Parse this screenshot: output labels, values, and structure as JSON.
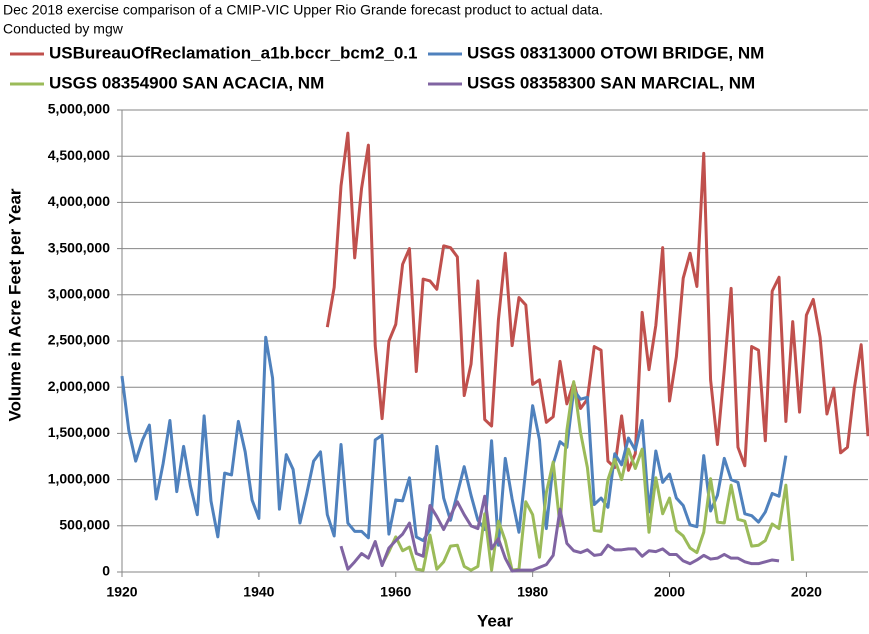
{
  "chart_data": {
    "type": "line",
    "title": "Dec 2018 exercise comparison of a CMIP-VIC Upper Rio Grande forecast product to actual data.",
    "subtitle": "Conducted by mgw",
    "xlabel": "Year",
    "ylabel": "Volume in Acre Feet per Year",
    "xlim": [
      1920,
      2029
    ],
    "xticks": [
      1920,
      1940,
      1960,
      1980,
      2000,
      2020
    ],
    "ylim": [
      0,
      5000000
    ],
    "yticks": [
      0,
      {
        "value": 500000,
        "label": "500,000"
      },
      {
        "value": 1000000,
        "label": "1,000,000"
      },
      {
        "value": 1500000,
        "label": "1,500,000"
      },
      {
        "value": 2000000,
        "label": "2,000,000"
      },
      {
        "value": 2500000,
        "label": "2,500,000"
      },
      {
        "value": 3000000,
        "label": "3,000,000"
      },
      {
        "value": 3500000,
        "label": "3,500,000"
      },
      {
        "value": 4000000,
        "label": "4,000,000"
      },
      {
        "value": 4500000,
        "label": "4,500,000"
      },
      {
        "value": 5000000,
        "label": "5,000,000"
      }
    ],
    "grid": true,
    "series": [
      {
        "name": "USBureauOfReclamation_a1b.bccr_bcm2_0.1",
        "color": "#c0504d",
        "x": [
          1950,
          1951,
          1952,
          1953,
          1954,
          1955,
          1956,
          1957,
          1958,
          1959,
          1960,
          1961,
          1962,
          1963,
          1964,
          1965,
          1966,
          1967,
          1968,
          1969,
          1970,
          1971,
          1972,
          1973,
          1974,
          1975,
          1976,
          1977,
          1978,
          1979,
          1980,
          1981,
          1982,
          1983,
          1984,
          1985,
          1986,
          1987,
          1988,
          1989,
          1990,
          1991,
          1992,
          1993,
          1994,
          1995,
          1996,
          1997,
          1998,
          1999,
          2000,
          2001,
          2002,
          2003,
          2004,
          2005,
          2006,
          2007,
          2008,
          2009,
          2010,
          2011,
          2012,
          2013,
          2014,
          2015,
          2016,
          2017,
          2018,
          2019,
          2020,
          2021,
          2022,
          2023,
          2024,
          2025,
          2026,
          2027,
          2028,
          2029
        ],
        "values": [
          2650000,
          3080000,
          4180000,
          4750000,
          3400000,
          4150000,
          4620000,
          2450000,
          1660000,
          2500000,
          2680000,
          3330000,
          3500000,
          2170000,
          3170000,
          3150000,
          3060000,
          3530000,
          3510000,
          3410000,
          1910000,
          2250000,
          3150000,
          1650000,
          1580000,
          2730000,
          3450000,
          2450000,
          2970000,
          2890000,
          2030000,
          2080000,
          1620000,
          1680000,
          2280000,
          1820000,
          2050000,
          1770000,
          1870000,
          2440000,
          2400000,
          1200000,
          1130000,
          1690000,
          1100000,
          1280000,
          2810000,
          2190000,
          2670000,
          3510000,
          1850000,
          2330000,
          3180000,
          3450000,
          3090000,
          4530000,
          2080000,
          1380000,
          2190000,
          3070000,
          1350000,
          1150000,
          2440000,
          2400000,
          1420000,
          3040000,
          3190000,
          1630000,
          2710000,
          1730000,
          2780000,
          2950000,
          2540000,
          1710000,
          1990000,
          1290000,
          1350000,
          1990000,
          2460000,
          1470000
        ]
      },
      {
        "name": "USGS 08313000 OTOWI BRIDGE, NM",
        "color": "#4f81bd",
        "x": [
          1920,
          1921,
          1922,
          1923,
          1924,
          1925,
          1926,
          1927,
          1928,
          1929,
          1930,
          1931,
          1932,
          1933,
          1934,
          1935,
          1936,
          1937,
          1938,
          1939,
          1940,
          1941,
          1942,
          1943,
          1944,
          1945,
          1946,
          1947,
          1948,
          1949,
          1950,
          1951,
          1952,
          1953,
          1954,
          1955,
          1956,
          1957,
          1958,
          1959,
          1960,
          1961,
          1962,
          1963,
          1964,
          1965,
          1966,
          1967,
          1968,
          1969,
          1970,
          1971,
          1972,
          1973,
          1974,
          1975,
          1976,
          1977,
          1978,
          1979,
          1980,
          1981,
          1982,
          1983,
          1984,
          1985,
          1986,
          1987,
          1988,
          1989,
          1990,
          1991,
          1992,
          1993,
          1994,
          1995,
          1996,
          1997,
          1998,
          1999,
          2000,
          2001,
          2002,
          2003,
          2004,
          2005,
          2006,
          2007,
          2008,
          2009,
          2010,
          2011,
          2012,
          2013,
          2014,
          2015,
          2016,
          2017
        ],
        "values": [
          2120000,
          1530000,
          1200000,
          1430000,
          1590000,
          790000,
          1170000,
          1640000,
          870000,
          1360000,
          930000,
          620000,
          1690000,
          770000,
          380000,
          1070000,
          1050000,
          1630000,
          1300000,
          780000,
          580000,
          2540000,
          2100000,
          680000,
          1270000,
          1110000,
          530000,
          850000,
          1200000,
          1300000,
          620000,
          390000,
          1380000,
          530000,
          440000,
          440000,
          370000,
          1430000,
          1480000,
          410000,
          780000,
          770000,
          1020000,
          380000,
          340000,
          460000,
          1360000,
          800000,
          560000,
          850000,
          1140000,
          830000,
          560000,
          460000,
          1420000,
          290000,
          1230000,
          790000,
          430000,
          1110000,
          1800000,
          1430000,
          470000,
          1170000,
          1410000,
          1350000,
          1970000,
          1870000,
          1890000,
          730000,
          800000,
          700000,
          1280000,
          1160000,
          1450000,
          1320000,
          1640000,
          650000,
          1310000,
          970000,
          1060000,
          800000,
          720000,
          510000,
          490000,
          1260000,
          660000,
          830000,
          1230000,
          1000000,
          970000,
          630000,
          610000,
          540000,
          650000,
          850000,
          820000,
          1260000
        ]
      },
      {
        "name": "USGS 08354900 SAN ACACIA, NM",
        "color": "#9bbb59",
        "x": [
          1958,
          1959,
          1960,
          1961,
          1962,
          1963,
          1964,
          1965,
          1966,
          1967,
          1968,
          1969,
          1970,
          1971,
          1972,
          1973,
          1974,
          1975,
          1976,
          1977,
          1978,
          1979,
          1980,
          1981,
          1982,
          1983,
          1984,
          1985,
          1986,
          1987,
          1988,
          1989,
          1990,
          1991,
          1992,
          1993,
          1994,
          1995,
          1996,
          1997,
          1998,
          1999,
          2000,
          2001,
          2002,
          2003,
          2004,
          2005,
          2006,
          2007,
          2008,
          2009,
          2010,
          2011,
          2012,
          2013,
          2014,
          2015,
          2016,
          2017,
          2018
        ],
        "values": [
          80000,
          220000,
          380000,
          230000,
          270000,
          30000,
          20000,
          400000,
          30000,
          110000,
          280000,
          290000,
          60000,
          20000,
          60000,
          630000,
          20000,
          550000,
          340000,
          20000,
          30000,
          760000,
          620000,
          160000,
          860000,
          1190000,
          500000,
          1530000,
          2060000,
          1510000,
          1130000,
          450000,
          440000,
          1000000,
          1220000,
          1000000,
          1330000,
          1120000,
          1330000,
          430000,
          1020000,
          630000,
          800000,
          450000,
          390000,
          260000,
          210000,
          430000,
          1010000,
          540000,
          530000,
          940000,
          570000,
          550000,
          280000,
          290000,
          340000,
          520000,
          470000,
          940000,
          120000
        ]
      },
      {
        "name": "USGS 08358300 SAN MARCIAL, NM",
        "color": "#8064a2",
        "x": [
          1952,
          1953,
          1954,
          1955,
          1956,
          1957,
          1958,
          1959,
          1960,
          1961,
          1962,
          1963,
          1964,
          1965,
          1966,
          1967,
          1968,
          1969,
          1970,
          1971,
          1972,
          1973,
          1974,
          1975,
          1976,
          1977,
          1978,
          1979,
          1980,
          1981,
          1982,
          1983,
          1984,
          1985,
          1986,
          1987,
          1988,
          1989,
          1990,
          1991,
          1992,
          1993,
          1994,
          1995,
          1996,
          1997,
          1998,
          1999,
          2000,
          2001,
          2002,
          2003,
          2004,
          2005,
          2006,
          2007,
          2008,
          2009,
          2010,
          2011,
          2012,
          2013,
          2014,
          2015,
          2016
        ],
        "values": [
          280000,
          30000,
          110000,
          200000,
          150000,
          330000,
          70000,
          260000,
          340000,
          410000,
          530000,
          200000,
          170000,
          720000,
          600000,
          460000,
          610000,
          760000,
          620000,
          500000,
          470000,
          820000,
          250000,
          360000,
          150000,
          10000,
          20000,
          20000,
          20000,
          50000,
          80000,
          180000,
          680000,
          310000,
          230000,
          210000,
          240000,
          180000,
          190000,
          290000,
          240000,
          240000,
          250000,
          250000,
          170000,
          230000,
          220000,
          250000,
          190000,
          190000,
          120000,
          90000,
          130000,
          180000,
          140000,
          150000,
          190000,
          150000,
          150000,
          110000,
          90000,
          90000,
          110000,
          130000,
          120000
        ]
      }
    ]
  }
}
